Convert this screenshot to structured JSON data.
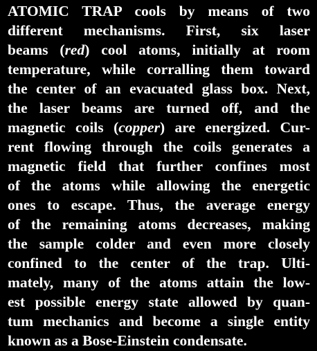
{
  "caption": {
    "lines": [
      [
        {
          "text": "ATOMIC TRAP cools by means of two"
        }
      ],
      [
        {
          "text": "different mechanisms. First, six laser"
        }
      ],
      [
        {
          "text": "beams ("
        },
        {
          "text": "red",
          "italic": true
        },
        {
          "text": ") cool atoms, initially at room"
        }
      ],
      [
        {
          "text": "temperature, while corralling them toward"
        }
      ],
      [
        {
          "text": "the center of an evacuated glass box. Next,"
        }
      ],
      [
        {
          "text": "the laser beams are turned off, and the"
        }
      ],
      [
        {
          "text": "magnetic coils ("
        },
        {
          "text": "copper",
          "italic": true
        },
        {
          "text": ") are energized. Cur-"
        }
      ],
      [
        {
          "text": "rent flowing through the coils generates a"
        }
      ],
      [
        {
          "text": "magnetic field that further confines most"
        }
      ],
      [
        {
          "text": "of the atoms while allowing the energetic"
        }
      ],
      [
        {
          "text": "ones to escape. Thus, the average energy"
        }
      ],
      [
        {
          "text": "of the remaining atoms decreases, making"
        }
      ],
      [
        {
          "text": "the sample colder and even more closely"
        }
      ],
      [
        {
          "text": "confined to the center of the trap. Ulti-"
        }
      ],
      [
        {
          "text": "mately, many of the atoms attain the low-"
        }
      ],
      [
        {
          "text": "est possible energy state allowed by quan-"
        }
      ],
      [
        {
          "text": "tum mechanics and become a single entity"
        }
      ],
      [
        {
          "text": "known as a Bose-Einstein condensate."
        }
      ]
    ]
  }
}
